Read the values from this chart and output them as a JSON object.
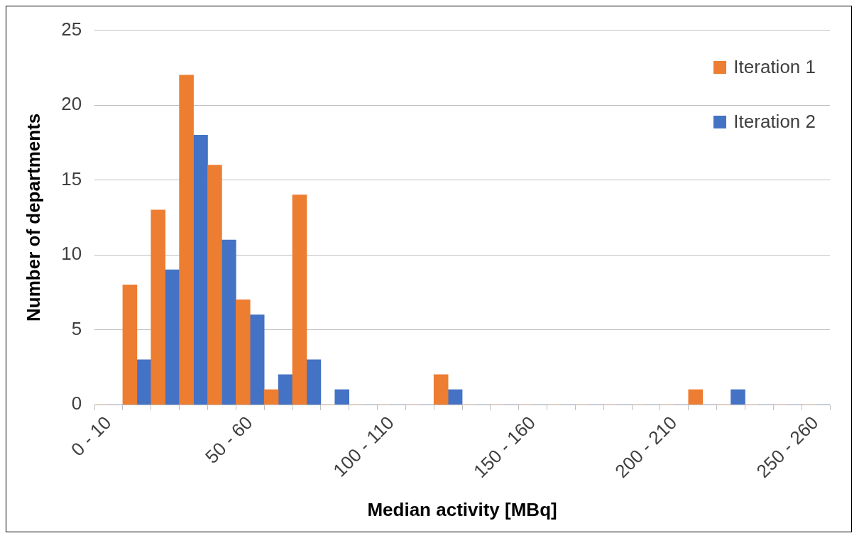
{
  "chart_data": {
    "type": "bar",
    "xlabel": "Median activity [MBq]",
    "ylabel": "Number of departments",
    "categories": [
      "0 - 10",
      null,
      null,
      null,
      null,
      "50 - 60",
      null,
      null,
      null,
      null,
      "100 - 110",
      null,
      null,
      null,
      null,
      "150 - 160",
      null,
      null,
      null,
      null,
      "200 - 210",
      null,
      null,
      null,
      null,
      "250 - 260"
    ],
    "series": [
      {
        "name": "Iteration 1",
        "color": "#ed7d31",
        "values": [
          0,
          8,
          13,
          22,
          16,
          7,
          1,
          14,
          0,
          0,
          0,
          0,
          2,
          0,
          0,
          0,
          0,
          0,
          0,
          0,
          0,
          1,
          0,
          0,
          0,
          0
        ]
      },
      {
        "name": "Iteration 2",
        "color": "#4472c4",
        "values": [
          0,
          3,
          9,
          18,
          11,
          6,
          2,
          3,
          1,
          0,
          0,
          0,
          1,
          0,
          0,
          0,
          0,
          0,
          0,
          0,
          0,
          0,
          1,
          0,
          0,
          0
        ]
      }
    ],
    "ylim": [
      0,
      25
    ],
    "yticks": [
      0,
      5,
      10,
      15,
      20,
      25
    ],
    "grid": "y",
    "legend": "top right"
  }
}
